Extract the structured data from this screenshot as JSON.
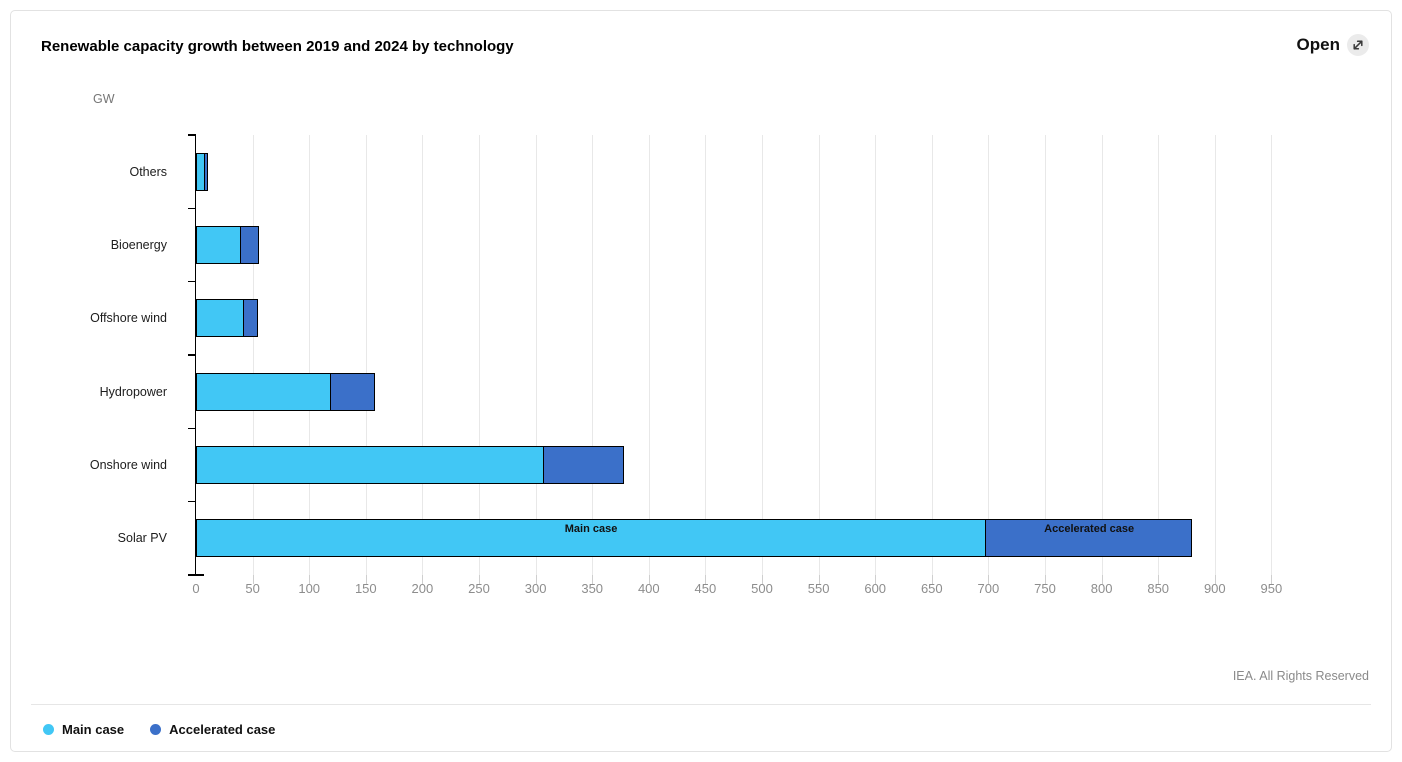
{
  "card": {
    "title": "Renewable capacity growth between 2019 and 2024 by technology",
    "open_label": "Open",
    "copyright": "IEA. All Rights Reserved"
  },
  "chart_data": {
    "type": "bar",
    "orientation": "horizontal",
    "stacked": true,
    "title": "Renewable capacity growth between 2019 and 2024 by technology",
    "unit_label": "GW",
    "categories": [
      "Others",
      "Bioenergy",
      "Offshore wind",
      "Hydropower",
      "Onshore wind",
      "Solar PV"
    ],
    "series": [
      {
        "name": "Main case",
        "color": "#41C7F5",
        "values": [
          8,
          40,
          43,
          120,
          308,
          698
        ]
      },
      {
        "name": "Accelerated case",
        "color": "#3B70C9",
        "values": [
          3,
          16,
          12,
          38,
          70,
          182
        ]
      }
    ],
    "totals": [
      11,
      56,
      55,
      158,
      378,
      880
    ],
    "xlim": [
      0,
      1000
    ],
    "x_ticks": [
      0,
      50,
      100,
      150,
      200,
      250,
      300,
      350,
      400,
      450,
      500,
      550,
      600,
      650,
      700,
      750,
      800,
      850,
      900,
      950
    ],
    "grid": true,
    "bar_segment_labels": {
      "category": "Solar PV",
      "main": "Main case",
      "accelerated": "Accelerated case"
    },
    "legend_position": "bottom-left",
    "legend": [
      {
        "label": "Main case",
        "color": "#41C7F5"
      },
      {
        "label": "Accelerated case",
        "color": "#3B70C9"
      }
    ]
  }
}
